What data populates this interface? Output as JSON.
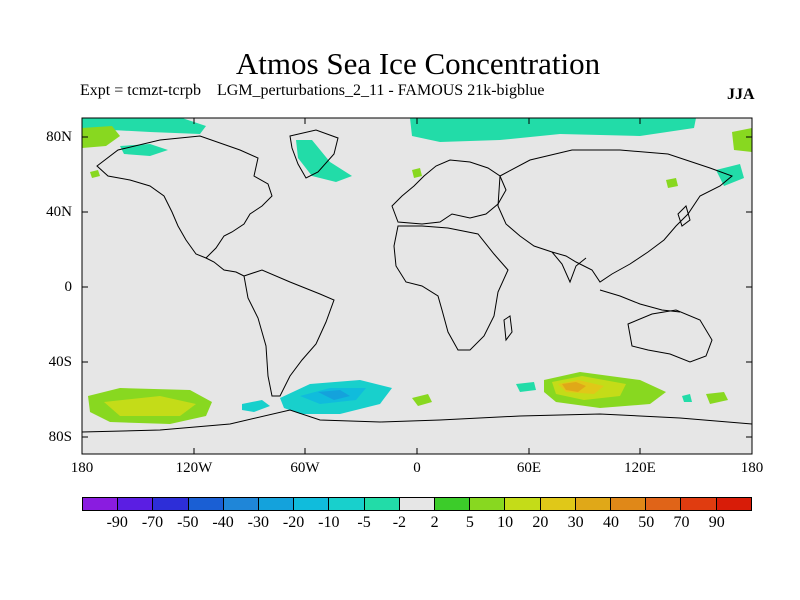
{
  "title": "Atmos Sea Ice Concentration",
  "subtitle": "Expt = tcmzt-tcrpb    LGM_perturbations_2_11 - FAMOUS 21k-bigblue",
  "season": "JJA",
  "lat_labels": [
    "80N",
    "40N",
    "0",
    "40S",
    "80S"
  ],
  "lon_labels": [
    "180",
    "120W",
    "60W",
    "0",
    "60E",
    "120E",
    "180"
  ],
  "colorbar": {
    "labels": [
      "-90",
      "-70",
      "-50",
      "-40",
      "-30",
      "-20",
      "-10",
      "-5",
      "-2",
      "2",
      "5",
      "10",
      "20",
      "30",
      "40",
      "50",
      "70",
      "90"
    ],
    "colors": [
      "#8a1ce0",
      "#5b1ee3",
      "#2d2ed8",
      "#1a5fd4",
      "#1f86d8",
      "#14a2dc",
      "#10bcdc",
      "#18d0cc",
      "#22dca8",
      "#e6e6e6",
      "#3ccc2a",
      "#88d820",
      "#c4dc18",
      "#e0c818",
      "#e0a818",
      "#e08818",
      "#e06418",
      "#e03c10",
      "#d81c08"
    ]
  },
  "colors": {
    "ocean_background": "#e6e6e6",
    "coastline": "#000000"
  }
}
